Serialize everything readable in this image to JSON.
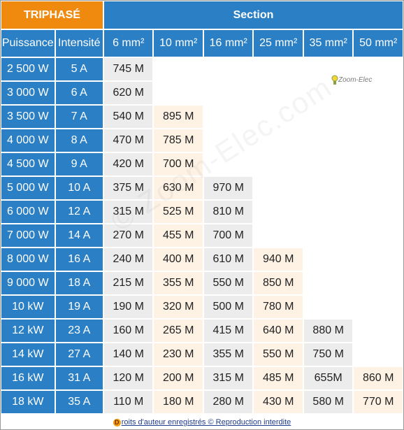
{
  "header": {
    "phase_label": "TRIPHASÉ",
    "section_label": "Section",
    "puissance_label": "Puissance",
    "intensite_label": "Intensité",
    "sections": [
      "6 mm²",
      "10 mm²",
      "16 mm²",
      "25 mm²",
      "35 mm²",
      "50 mm²"
    ]
  },
  "rows": [
    {
      "puissance": "2 500 W",
      "intensite": "5 A",
      "lengths": [
        "745 M",
        "",
        "",
        "",
        "",
        ""
      ]
    },
    {
      "puissance": "3 000 W",
      "intensite": "6 A",
      "lengths": [
        "620 M",
        "",
        "",
        "",
        "",
        ""
      ]
    },
    {
      "puissance": "3 500 W",
      "intensite": "7 A",
      "lengths": [
        "540 M",
        "895 M",
        "",
        "",
        "",
        ""
      ]
    },
    {
      "puissance": "4 000 W",
      "intensite": "8 A",
      "lengths": [
        "470 M",
        "785 M",
        "",
        "",
        "",
        ""
      ]
    },
    {
      "puissance": "4 500 W",
      "intensite": "9 A",
      "lengths": [
        "420 M",
        "700 M",
        "",
        "",
        "",
        ""
      ]
    },
    {
      "puissance": "5 000 W",
      "intensite": "10 A",
      "lengths": [
        "375 M",
        "630 M",
        "970 M",
        "",
        "",
        ""
      ]
    },
    {
      "puissance": "6 000 W",
      "intensite": "12 A",
      "lengths": [
        "315 M",
        "525 M",
        "810 M",
        "",
        "",
        ""
      ]
    },
    {
      "puissance": "7 000 W",
      "intensite": "14 A",
      "lengths": [
        "270 M",
        "455 M",
        "700 M",
        "",
        "",
        ""
      ]
    },
    {
      "puissance": "8 000 W",
      "intensite": "16 A",
      "lengths": [
        "240 M",
        "400 M",
        "610 M",
        "940 M",
        "",
        ""
      ]
    },
    {
      "puissance": "9 000 W",
      "intensite": "18 A",
      "lengths": [
        "215 M",
        "355 M",
        "550 M",
        "850 M",
        "",
        ""
      ]
    },
    {
      "puissance": "10 kW",
      "intensite": "19 A",
      "lengths": [
        "190 M",
        "320 M",
        "500 M",
        "780 M",
        "",
        ""
      ]
    },
    {
      "puissance": "12 kW",
      "intensite": "23 A",
      "lengths": [
        "160 M",
        "265 M",
        "415 M",
        "640 M",
        "880 M",
        ""
      ]
    },
    {
      "puissance": "14 kW",
      "intensite": "27 A",
      "lengths": [
        "140 M",
        "230 M",
        "355 M",
        "550 M",
        "750 M",
        ""
      ]
    },
    {
      "puissance": "16 kW",
      "intensite": "31 A",
      "lengths": [
        "120 M",
        "200 M",
        "315 M",
        "485 M",
        "655M",
        "860 M"
      ]
    },
    {
      "puissance": "18 kW",
      "intensite": "35 A",
      "lengths": [
        "110 M",
        "180 M",
        "280 M",
        "430 M",
        "580 M",
        "770 M"
      ]
    }
  ],
  "logo": {
    "text": "Zoom-Elec",
    "icon": "bulb-icon"
  },
  "watermark": "© Zoom-Elec.com",
  "footer": {
    "badge": "D",
    "text": "roits d'auteur enregistrés © Reproduction interdite"
  },
  "colors": {
    "orange": "#f08a0f",
    "blue": "#2b7fc4",
    "gray_cell": "#ececec",
    "cream_cell": "#fdf2e4",
    "footer_text": "#1f3c8a"
  }
}
